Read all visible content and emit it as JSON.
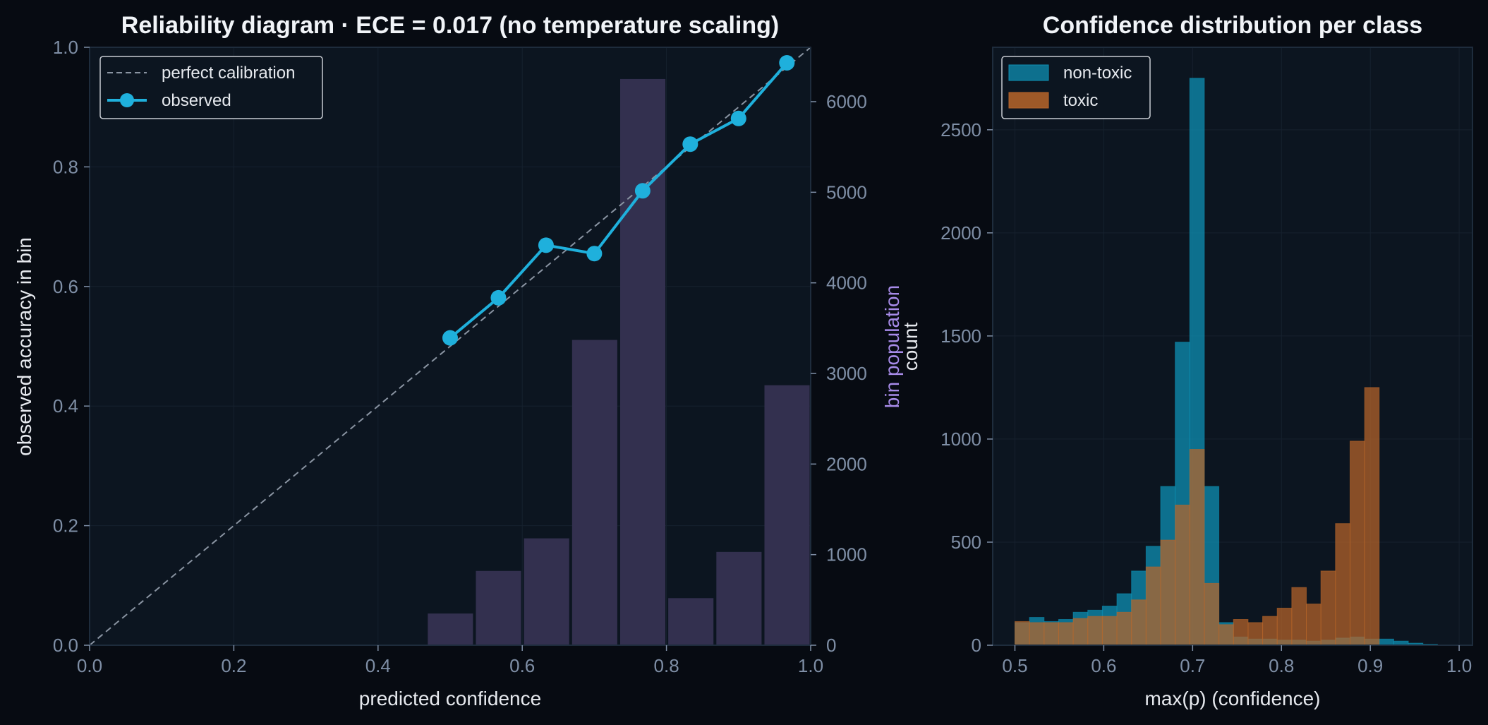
{
  "colors": {
    "page_background": "#070b12",
    "panel_background": "#0c1520",
    "grid": "#16212e",
    "spine": "#1e2c3c",
    "tick": "#7f8fa6",
    "text": "#e6e9ee",
    "title": "#f1f4f8",
    "observed_line": "#1fb0dc",
    "perfect_line": "#8a94a2",
    "bin_population_bars": "#33304f",
    "bin_population_label": "#a78be8",
    "non_toxic": "#0e8fb3",
    "toxic": "#b8652a",
    "overlap": "#9a8a63"
  },
  "chart_data": [
    {
      "type": "line",
      "title": "Reliability diagram  ·  ECE = 0.017  (no temperature scaling)",
      "xlabel": "predicted confidence",
      "ylabel": "observed accuracy in bin",
      "y2label": "bin population",
      "y2label_extra": "count",
      "xlim": [
        0,
        1
      ],
      "ylim": [
        0,
        1
      ],
      "y2lim": [
        0,
        6600
      ],
      "grid": true,
      "legend": "top-left",
      "x_ticks": [
        "0.0",
        "0.2",
        "0.4",
        "0.6",
        "0.8",
        "1.0"
      ],
      "y_ticks": [
        "0.0",
        "0.2",
        "0.4",
        "0.6",
        "0.8",
        "1.0"
      ],
      "y2_ticks": [
        "0",
        "1000",
        "2000",
        "3000",
        "4000",
        "5000",
        "6000"
      ],
      "series": [
        {
          "name": "perfect calibration",
          "style": "dashed",
          "x": [
            0,
            1
          ],
          "y": [
            0,
            1
          ]
        },
        {
          "name": "observed",
          "style": "line-marker",
          "x": [
            0.5,
            0.567,
            0.633,
            0.7,
            0.767,
            0.833,
            0.9,
            0.967
          ],
          "y": [
            0.514,
            0.581,
            0.669,
            0.655,
            0.76,
            0.838,
            0.881,
            0.974
          ]
        }
      ],
      "bars": {
        "axis": "right",
        "x_start": 0.467,
        "bin_width": 0.0667,
        "values": [
          350,
          820,
          1180,
          3370,
          6250,
          520,
          1030,
          2870
        ]
      }
    },
    {
      "type": "histogram",
      "title": "Confidence distribution per class",
      "xlabel": "max(p)  (confidence)",
      "ylabel": "",
      "xlim": [
        0.475,
        1.015
      ],
      "ylim": [
        0,
        2900
      ],
      "grid": true,
      "legend": "top-left",
      "x_ticks": [
        "0.5",
        "0.6",
        "0.7",
        "0.8",
        "0.9",
        "1.0"
      ],
      "y_ticks": [
        "0",
        "500",
        "1000",
        "1500",
        "2000",
        "2500"
      ],
      "bin_start": 0.5,
      "bin_width": 0.0164,
      "series": [
        {
          "name": "non-toxic",
          "values": [
            110,
            135,
            115,
            125,
            160,
            170,
            190,
            250,
            360,
            480,
            770,
            1470,
            2750,
            770,
            110,
            40,
            30,
            30,
            25,
            25,
            20,
            25,
            35,
            40,
            30,
            30,
            20,
            10,
            5,
            0
          ]
        },
        {
          "name": "toxic",
          "values": [
            115,
            110,
            110,
            110,
            130,
            140,
            140,
            160,
            220,
            380,
            510,
            680,
            950,
            300,
            100,
            125,
            110,
            140,
            180,
            280,
            200,
            360,
            590,
            990,
            1250,
            0,
            0,
            0,
            0,
            0
          ]
        }
      ]
    }
  ]
}
